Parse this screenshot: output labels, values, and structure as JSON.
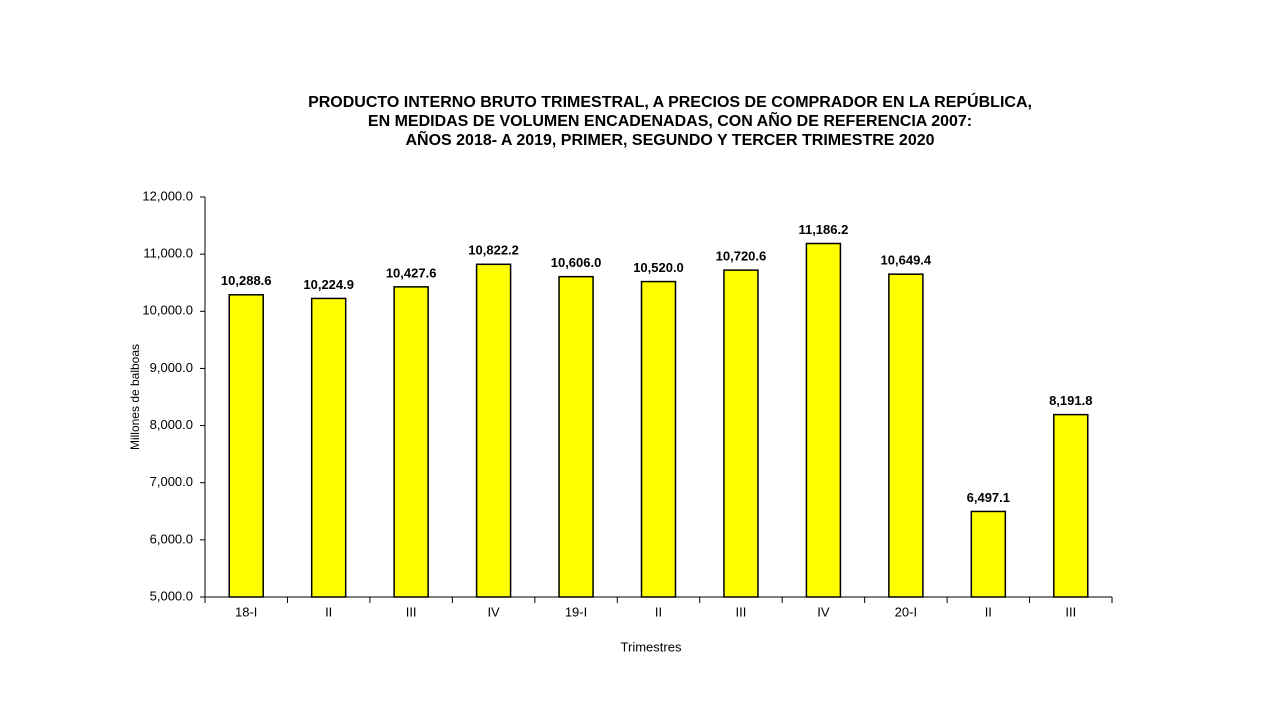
{
  "chart_data": {
    "type": "bar",
    "title": [
      "PRODUCTO INTERNO BRUTO TRIMESTRAL, A PRECIOS DE COMPRADOR EN LA REPÚBLICA,",
      "EN MEDIDAS DE VOLUMEN ENCADENADAS, CON AÑO DE REFERENCIA 2007:",
      "AÑOS 2018- A 2019, PRIMER, SEGUNDO Y TERCER TRIMESTRE 2020"
    ],
    "x_label": "Trimestres",
    "y_label": "Millones de balboas",
    "categories": [
      "18-I",
      "II",
      "III",
      "IV",
      "19-I",
      "II",
      "III",
      "IV",
      "20-I",
      "II",
      "III"
    ],
    "values": [
      10288.6,
      10224.9,
      10427.6,
      10822.2,
      10606.0,
      10520.0,
      10720.6,
      11186.2,
      10649.4,
      6497.1,
      8191.8
    ],
    "value_labels": [
      "10,288.6",
      "10,224.9",
      "10,427.6",
      "10,822.2",
      "10,606.0",
      "10,520.0",
      "10,720.6",
      "11,186.2",
      "10,649.4",
      "6,497.1",
      "8,191.8"
    ],
    "color": "#ffff00",
    "ylim": [
      5000,
      12000
    ],
    "yticks": [
      {
        "value": 5000,
        "label": "5,000.0"
      },
      {
        "value": 6000,
        "label": "6,000.0"
      },
      {
        "value": 7000,
        "label": "7,000.0"
      },
      {
        "value": 8000,
        "label": "8,000.0"
      },
      {
        "value": 9000,
        "label": "9,000.0"
      },
      {
        "value": 10000,
        "label": "10,000.0"
      },
      {
        "value": 11000,
        "label": "11,000.0"
      },
      {
        "value": 12000,
        "label": "12,000.0"
      }
    ],
    "grid": false
  }
}
